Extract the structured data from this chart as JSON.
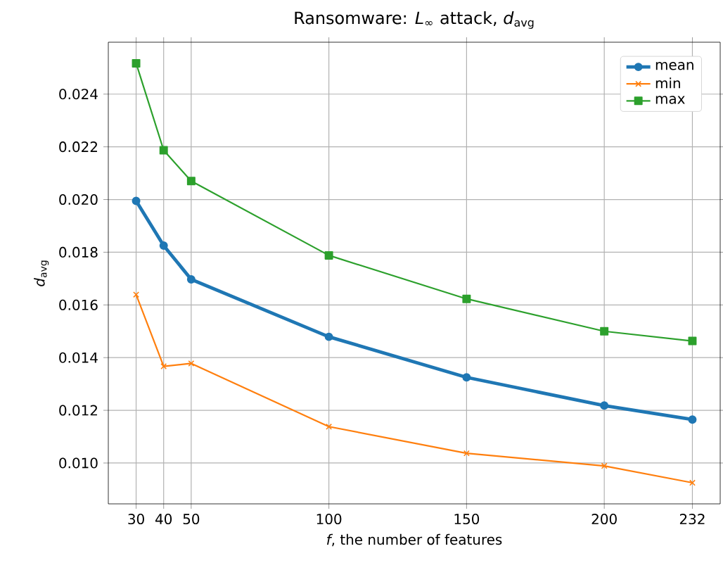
{
  "chart_data": {
    "type": "line",
    "title": "Ransomware: *L*$_{∞}$ attack, *d*$_{avg}$",
    "xlabel": "*f*, the number of features",
    "ylabel": "*d*$_{avg}$",
    "x": [
      30,
      40,
      50,
      100,
      150,
      200,
      232
    ],
    "series": [
      {
        "name": "mean",
        "color": "#1f77b4",
        "marker": "circle",
        "values": [
          0.01995,
          0.01825,
          0.01697,
          0.01479,
          0.01325,
          0.01218,
          0.01165
        ]
      },
      {
        "name": "min",
        "color": "#ff7f0e",
        "marker": "cross",
        "values": [
          0.01639,
          0.01367,
          0.01378,
          0.01138,
          0.01037,
          0.00989,
          0.00925
        ]
      },
      {
        "name": "max",
        "color": "#2ca02c",
        "marker": "square",
        "values": [
          0.02517,
          0.02187,
          0.0207,
          0.01788,
          0.01623,
          0.015,
          0.01463
        ]
      }
    ],
    "xlim": [
      19.9,
      242.1
    ],
    "ylim": [
      0.00845,
      0.02597
    ],
    "xticks": [
      30,
      40,
      50,
      100,
      150,
      200,
      232
    ],
    "yticks": [
      {
        "value": 0.01,
        "label": "0.010"
      },
      {
        "value": 0.012,
        "label": "0.012"
      },
      {
        "value": 0.014,
        "label": "0.014"
      },
      {
        "value": 0.016,
        "label": "0.016"
      },
      {
        "value": 0.018,
        "label": "0.018"
      },
      {
        "value": 0.02,
        "label": "0.020"
      },
      {
        "value": 0.022,
        "label": "0.022"
      },
      {
        "value": 0.024,
        "label": "0.024"
      }
    ],
    "grid": true,
    "legend": "top right"
  }
}
